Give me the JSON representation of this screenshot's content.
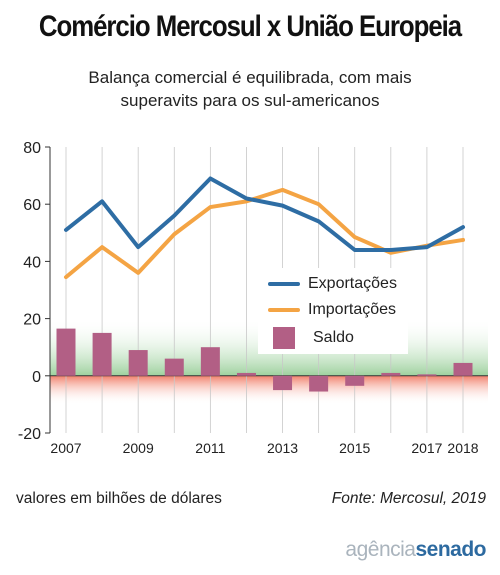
{
  "header": {
    "title": "Comércio Mercosul x União Europeia",
    "subtitle_line1": "Balança comercial é equilibrada, com mais",
    "subtitle_line2": "superavits para os sul-americanos"
  },
  "footer": {
    "units": "valores em bilhões de dólares",
    "source": "Fonte: Mercosul, 2019",
    "brand_part1": "agência",
    "brand_part2": "senado"
  },
  "colors": {
    "exportacoes": "#2e6da4",
    "importacoes": "#f4a444",
    "saldo": "#b25f85",
    "positive_band": "#8cc98c",
    "negative_band": "#f07a64"
  },
  "chart_data": {
    "type": "line",
    "x": [
      2007,
      2008,
      2009,
      2010,
      2011,
      2012,
      2013,
      2014,
      2015,
      2016,
      2017,
      2018
    ],
    "x_tick_labels": [
      "2007",
      "2009",
      "2011",
      "2013",
      "2015",
      "2017",
      "2018"
    ],
    "ylim": [
      -20,
      80
    ],
    "y_ticks": [
      -20,
      0,
      20,
      40,
      60,
      80
    ],
    "grid": "vertical",
    "legend_position": "center-right",
    "series": [
      {
        "name": "Exportações",
        "kind": "line",
        "values": [
          51,
          61,
          45,
          56,
          69,
          62,
          59.5,
          54,
          44,
          44,
          45,
          52
        ]
      },
      {
        "name": "Importações",
        "kind": "line",
        "values": [
          34.5,
          45,
          36,
          49.5,
          59,
          61,
          65,
          60,
          48.5,
          43,
          45.5,
          47.5
        ]
      },
      {
        "name": "Saldo",
        "kind": "bar",
        "values": [
          16.5,
          15,
          9,
          6,
          10,
          1,
          -5,
          -5.5,
          -3.5,
          1,
          0.5,
          4.5
        ]
      }
    ]
  }
}
